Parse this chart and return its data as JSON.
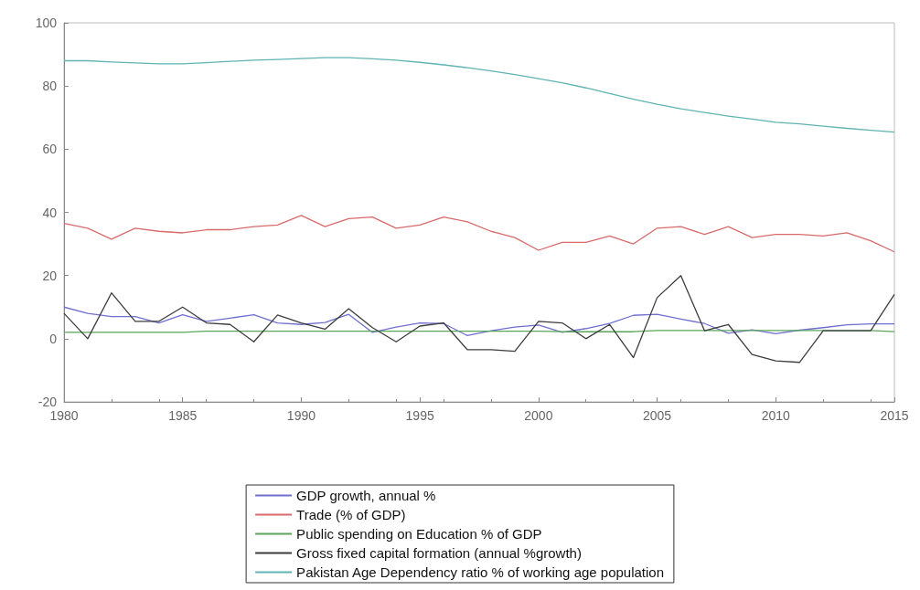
{
  "chart_data": {
    "type": "line",
    "x": [
      1980,
      1981,
      1982,
      1983,
      1984,
      1985,
      1986,
      1987,
      1988,
      1989,
      1990,
      1991,
      1992,
      1993,
      1994,
      1995,
      1996,
      1997,
      1998,
      1999,
      2000,
      2001,
      2002,
      2003,
      2004,
      2005,
      2006,
      2007,
      2008,
      2009,
      2010,
      2011,
      2012,
      2013,
      2014,
      2015
    ],
    "series": [
      {
        "name": "GDP growth, annual %",
        "color": "#6f6fd0",
        "values": [
          10,
          8,
          7,
          7,
          5,
          7.6,
          5.5,
          6.5,
          7.6,
          5,
          4.5,
          5.1,
          7.7,
          2,
          3.7,
          5,
          4.8,
          1,
          2.5,
          3.7,
          4.3,
          2,
          3.2,
          4.8,
          7.4,
          7.7,
          6.2,
          4.8,
          1.7,
          2.8,
          1.6,
          2.7,
          3.5,
          4.4,
          4.7,
          4.7
        ]
      },
      {
        "name": "Trade (% of GDP)",
        "color": "#d86a6a",
        "values": [
          36.5,
          35,
          31.5,
          35,
          34,
          33.5,
          34.5,
          34.5,
          35.5,
          36,
          39,
          35.5,
          38,
          38.5,
          35,
          36,
          38.5,
          37,
          34,
          32,
          28,
          30.5,
          30.5,
          32.5,
          30,
          35,
          35.5,
          33,
          35.5,
          32,
          33,
          33,
          32.5,
          33.5,
          31,
          27.5
        ]
      },
      {
        "name": "Public spending on Education % of GDP",
        "color": "#5aa55a",
        "values": [
          2,
          2,
          2,
          2,
          2,
          2,
          2.4,
          2.4,
          2.4,
          2.4,
          2.4,
          2.4,
          2.4,
          2.4,
          2.4,
          2.4,
          2.4,
          2.4,
          2.4,
          2.4,
          2.4,
          2.2,
          2.2,
          2.2,
          2.2,
          2.6,
          2.6,
          2.6,
          2.6,
          2.6,
          2.6,
          2.6,
          2.6,
          2.6,
          2.6,
          2.2
        ]
      },
      {
        "name": "Gross fixed capital formation (annual %growth)",
        "color": "#3c3c3c",
        "values": [
          8,
          0,
          14.5,
          5.5,
          5.5,
          10,
          5,
          4.5,
          -1,
          7.5,
          5,
          3,
          9.5,
          3.5,
          -1,
          4,
          5,
          -3.5,
          -3.5,
          -4,
          5.5,
          5,
          0,
          4.5,
          -6,
          13,
          20,
          2.5,
          4.5,
          -5,
          -7,
          -7.5,
          2.5,
          2.5,
          2.5,
          14
        ]
      },
      {
        "name": "Pakistan Age Dependency ratio % of working age population",
        "color": "#5fb3b3",
        "values": [
          88,
          88,
          87.6,
          87.3,
          87,
          87,
          87.4,
          87.8,
          88.2,
          88.4,
          88.7,
          89,
          89,
          88.6,
          88.2,
          87.5,
          86.7,
          85.8,
          84.8,
          83.6,
          82.3,
          81,
          79.4,
          77.6,
          75.8,
          74.2,
          72.8,
          71.6,
          70.5,
          69.5,
          68.5,
          68,
          67.3,
          66.6,
          66,
          65.4
        ]
      }
    ],
    "xlim": [
      1980,
      2015
    ],
    "xticks": [
      1980,
      1985,
      1990,
      1995,
      2000,
      2005,
      2010,
      2015
    ],
    "ylim": [
      -20,
      100
    ],
    "yticks": [
      -20,
      0,
      20,
      40,
      60,
      80,
      100
    ],
    "grid": false,
    "legend": "bottom",
    "marker": "none",
    "line_style": "solid"
  }
}
